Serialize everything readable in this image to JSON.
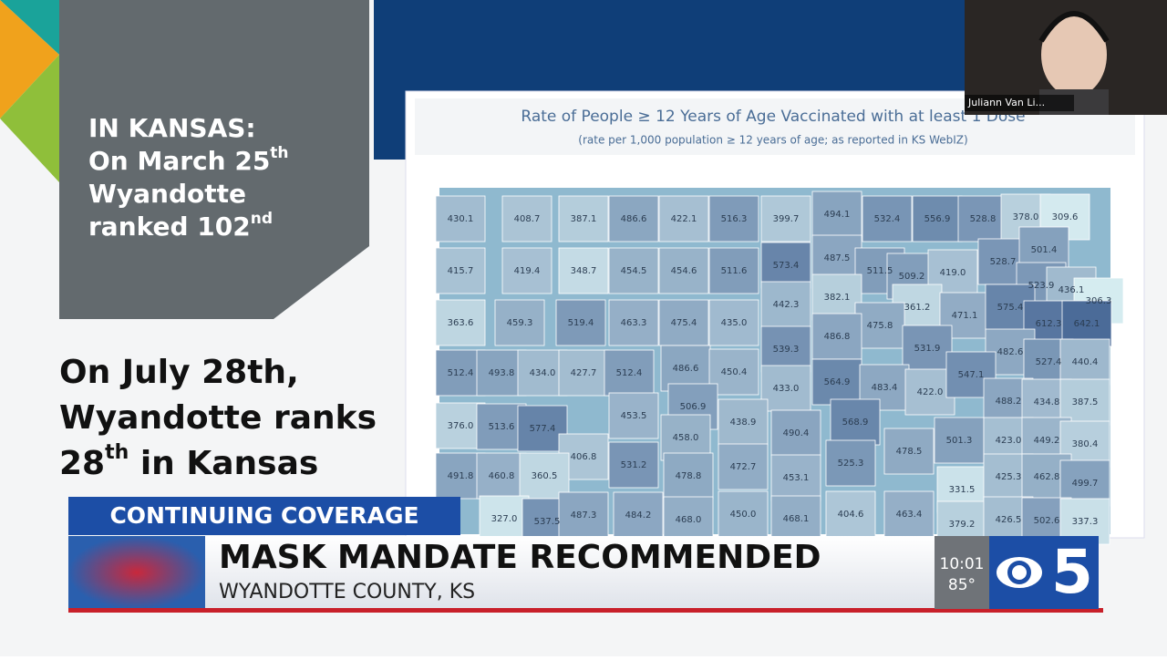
{
  "slide": {
    "box_heading": "IN KANSAS:",
    "box_lines": [
      {
        "text": "On March 25",
        "sup": "th"
      },
      {
        "text": "Wyandotte"
      },
      {
        "text": "ranked 102",
        "sup": "nd"
      }
    ],
    "bottom_lines": [
      {
        "text": "On July 28th,"
      },
      {
        "text": "Wyandotte ranks"
      },
      {
        "text": "28",
        "sup": "th",
        "rest": " in Kansas"
      }
    ]
  },
  "map": {
    "title": "Rate of People ≥ 12 Years of Age Vaccinated with at least 1 Dose",
    "subtitle": "(rate per 1,000 population ≥ 12 years of age; as reported in KS WebIZ)",
    "counties": [
      "430.1",
      "408.7",
      "387.1",
      "486.6",
      "422.1",
      "516.3",
      "399.7",
      "494.1",
      "532.4",
      "556.9",
      "528.8",
      "378.0",
      "309.6",
      "415.7",
      "419.4",
      "348.7",
      "454.5",
      "454.6",
      "511.6",
      "573.4",
      "487.5",
      "511.5",
      "509.2",
      "419.0",
      "528.7",
      "501.4",
      "523.9",
      "436.1",
      "306.3",
      "363.6",
      "459.3",
      "519.4",
      "463.3",
      "475.4",
      "435.0",
      "442.3",
      "382.1",
      "361.2",
      "471.1",
      "475.8",
      "575.4",
      "612.3",
      "642.1",
      "486.8",
      "539.3",
      "512.4",
      "493.8",
      "434.0",
      "427.7",
      "512.4",
      "486.6",
      "450.4",
      "531.9",
      "482.6",
      "527.4",
      "440.4",
      "564.9",
      "433.0",
      "483.4",
      "422.0",
      "547.1",
      "488.2",
      "434.8",
      "387.5",
      "376.0",
      "513.6",
      "577.4",
      "453.5",
      "506.9",
      "438.9",
      "490.4",
      "568.9",
      "458.0",
      "406.8",
      "478.5",
      "501.3",
      "423.0",
      "449.2",
      "380.4",
      "491.8",
      "460.8",
      "360.5",
      "531.2",
      "478.8",
      "472.7",
      "453.1",
      "525.3",
      "331.5",
      "425.3",
      "462.8",
      "499.7",
      "327.0",
      "537.5",
      "487.3",
      "484.2",
      "468.0",
      "450.0",
      "468.1",
      "404.6",
      "463.4",
      "379.2",
      "426.5",
      "502.6",
      "337.3"
    ]
  },
  "video": {
    "name_tag": "Juliann Van Li..."
  },
  "lower_third": {
    "tag": "CONTINUING COVERAGE",
    "headline": "MASK MANDATE RECOMMENDED",
    "subhead": "WYANDOTTE COUNTY, KS",
    "time": "10:01",
    "temperature": "85°",
    "station_logo": "5"
  }
}
